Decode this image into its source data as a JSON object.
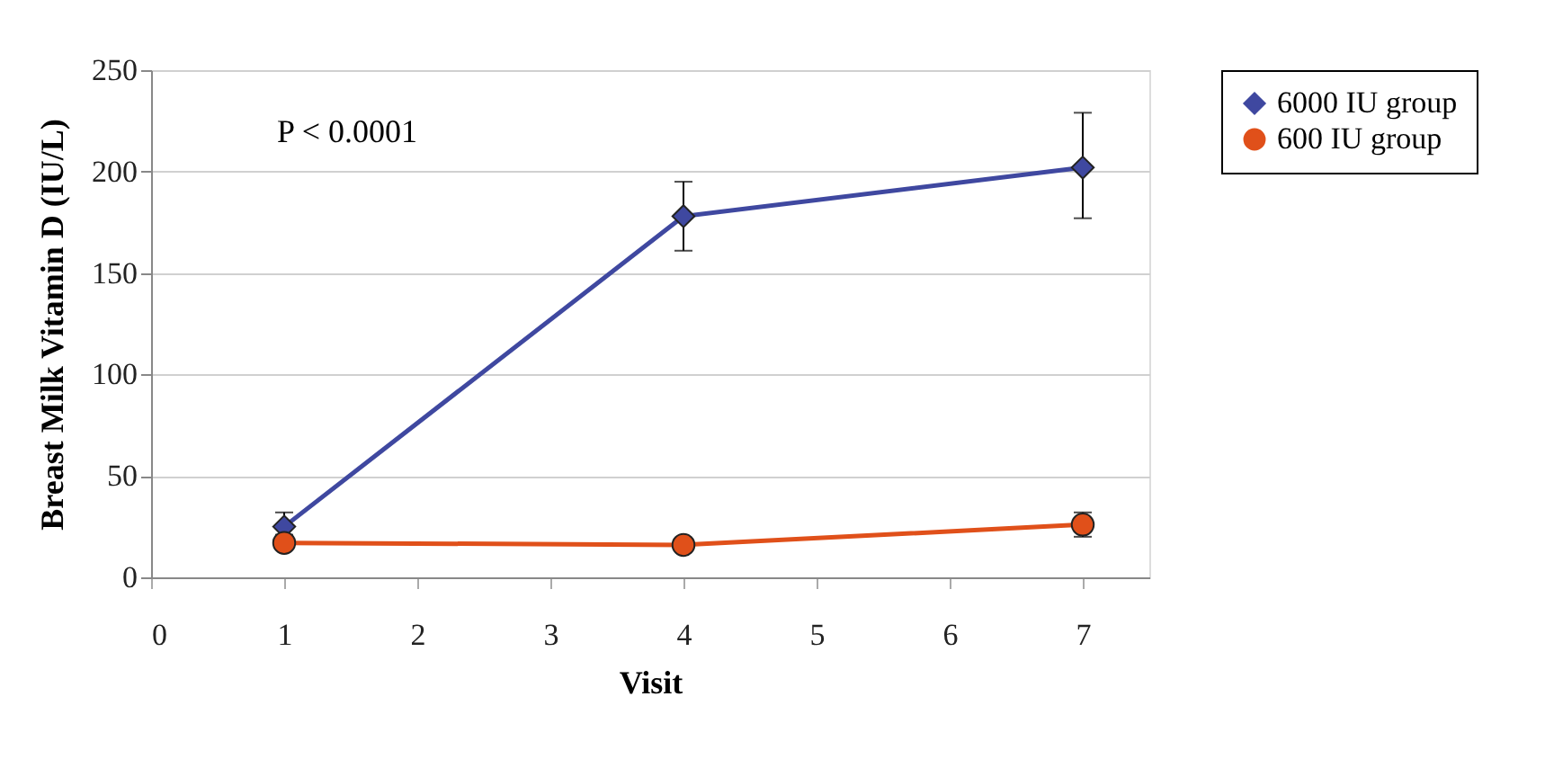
{
  "chart_data": {
    "type": "line",
    "xlabel": "Visit",
    "ylabel": "Breast Milk Vitamin D (IU/L)",
    "x": [
      1,
      4,
      7
    ],
    "xlim": [
      0,
      7.5
    ],
    "xticks": [
      0,
      1,
      2,
      3,
      4,
      5,
      6,
      7
    ],
    "ylim": [
      0,
      250
    ],
    "yticks": [
      0,
      50,
      100,
      150,
      200,
      250
    ],
    "series": [
      {
        "name": "6000 IU group",
        "color": "#3f48a0",
        "marker": "diamond",
        "values": [
          25,
          178,
          202
        ],
        "errors": [
          [
            19,
            32
          ],
          [
            161,
            195
          ],
          [
            177,
            229
          ]
        ]
      },
      {
        "name": "600 IU group",
        "color": "#e0501a",
        "marker": "circle",
        "values": [
          17,
          16,
          26
        ],
        "errors": [
          [
            14,
            21
          ],
          null,
          [
            20,
            32
          ]
        ]
      }
    ],
    "annotations": [
      "P < 0.0001"
    ],
    "grid": "y",
    "legend": "right",
    "line_style": "solid"
  }
}
